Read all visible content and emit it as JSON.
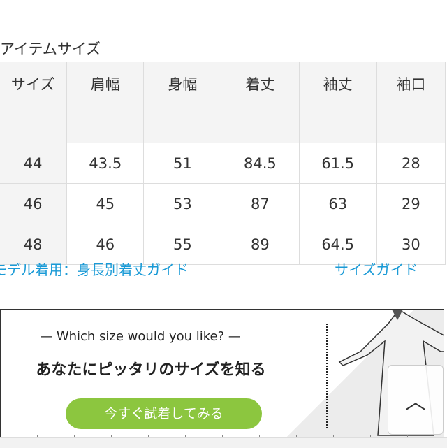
{
  "section_title": "アイテムサイズ",
  "table": {
    "headers": [
      "サイズ",
      "肩幅",
      "身幅",
      "着丈",
      "袖丈",
      "袖口"
    ],
    "rows": [
      [
        "44",
        "43.5",
        "51",
        "84.5",
        "61.5",
        "28"
      ],
      [
        "46",
        "45",
        "53",
        "87",
        "63",
        "29"
      ],
      [
        "48",
        "46",
        "55",
        "89",
        "64.5",
        "30"
      ]
    ]
  },
  "links": {
    "model_guide": "モデル着用：身長別着丈ガイド",
    "size_guide": "サイズガイド"
  },
  "banner": {
    "question": "— Which size would you like? —",
    "headline": "あなたにピッタリのサイズを知る",
    "button": "今すぐ試着してみる"
  },
  "colors": {
    "link": "#1a9ad6",
    "button": "#8cc63f"
  },
  "scroll_top_icon": "chevron-up-icon"
}
